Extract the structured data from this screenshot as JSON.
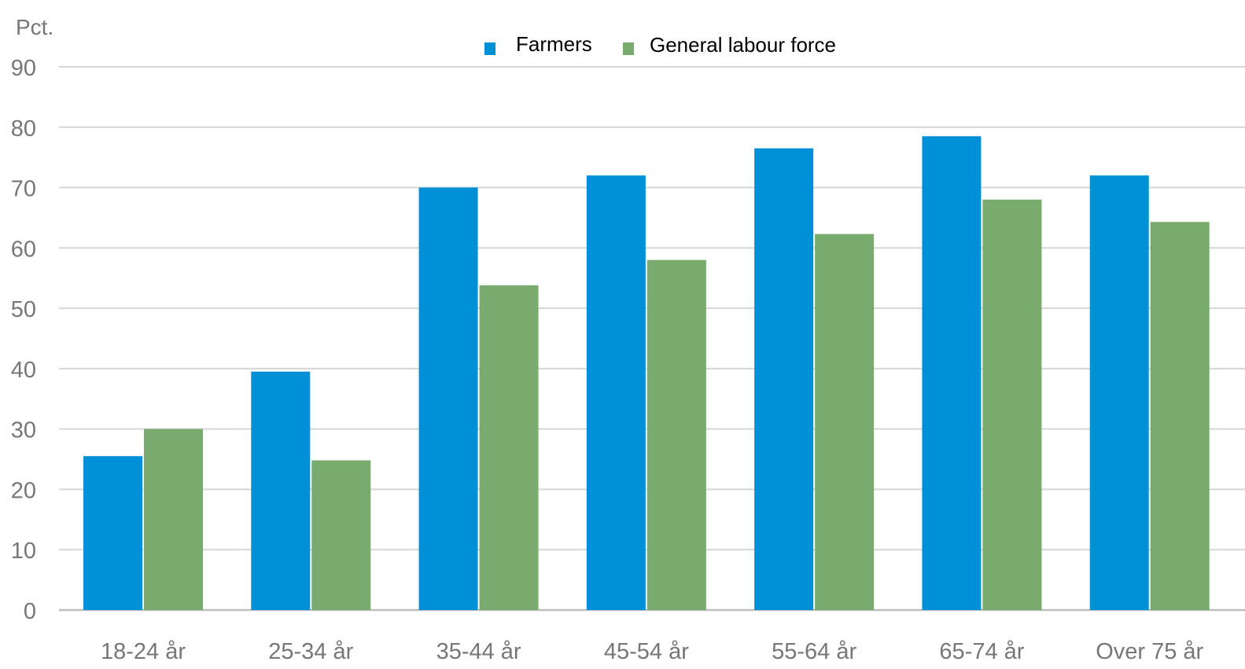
{
  "chart_data": {
    "type": "bar",
    "ylabel": "Pct.",
    "ylim": [
      0,
      90
    ],
    "yticks": [
      0,
      10,
      20,
      30,
      40,
      50,
      60,
      70,
      80,
      90
    ],
    "grid": true,
    "legend_position": "top-center",
    "categories": [
      "18-24 år",
      "25-34 år",
      "35-44 år",
      "45-54 år",
      "55-64 år",
      "65-74 år",
      "Over 75 år"
    ],
    "series": [
      {
        "name": "Farmers",
        "color": "#0090d8",
        "values": [
          25.5,
          39.5,
          70,
          72,
          76.5,
          78.5,
          72
        ]
      },
      {
        "name": "General labour force",
        "color": "#79aa6e",
        "values": [
          30,
          24.8,
          53.8,
          58,
          62.3,
          68,
          64.3
        ]
      }
    ]
  }
}
